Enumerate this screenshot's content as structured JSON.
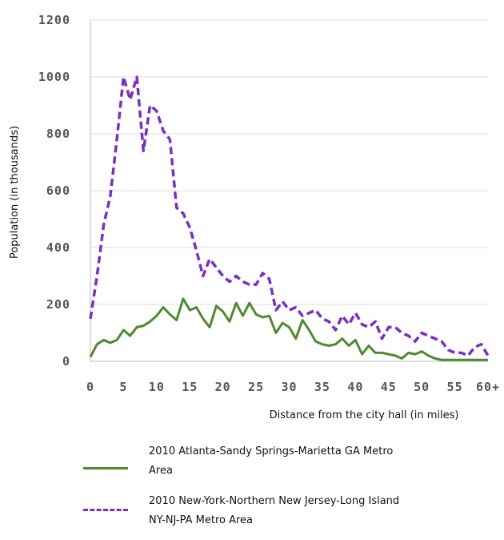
{
  "chart_data": {
    "type": "line",
    "xlabel": "Distance from the city hall (in miles)",
    "ylabel": "Population (in thousands)",
    "xlim": [
      0,
      60
    ],
    "ylim": [
      0,
      1200
    ],
    "x_ticks": [
      {
        "value": 0,
        "label": "0"
      },
      {
        "value": 5,
        "label": "5"
      },
      {
        "value": 10,
        "label": "10"
      },
      {
        "value": 15,
        "label": "15"
      },
      {
        "value": 20,
        "label": "20"
      },
      {
        "value": 25,
        "label": "25"
      },
      {
        "value": 30,
        "label": "30"
      },
      {
        "value": 35,
        "label": "35"
      },
      {
        "value": 40,
        "label": "40"
      },
      {
        "value": 45,
        "label": "45"
      },
      {
        "value": 50,
        "label": "50"
      },
      {
        "value": 55,
        "label": "55"
      },
      {
        "value": 60,
        "label": "60+"
      }
    ],
    "y_ticks": [
      0,
      200,
      400,
      600,
      800,
      1000,
      1200
    ],
    "grid": "horizontal",
    "legend_position": "bottom",
    "series": [
      {
        "name": "2010 Atlanta-Sandy Springs-Marietta GA Metro Area",
        "style": "solid",
        "color": "#4e8a30",
        "x": [
          0,
          1,
          2,
          3,
          4,
          5,
          6,
          7,
          8,
          9,
          10,
          11,
          12,
          13,
          14,
          15,
          16,
          17,
          18,
          19,
          20,
          21,
          22,
          23,
          24,
          25,
          26,
          27,
          28,
          29,
          30,
          31,
          32,
          33,
          34,
          35,
          36,
          37,
          38,
          39,
          40,
          41,
          42,
          43,
          44,
          45,
          46,
          47,
          48,
          49,
          50,
          51,
          52,
          53,
          54,
          55,
          56,
          57,
          58,
          59,
          60
        ],
        "values": [
          15,
          60,
          75,
          65,
          75,
          110,
          90,
          120,
          125,
          140,
          160,
          190,
          165,
          145,
          220,
          180,
          190,
          150,
          120,
          195,
          175,
          140,
          205,
          160,
          205,
          165,
          155,
          160,
          100,
          135,
          120,
          80,
          145,
          110,
          70,
          60,
          55,
          60,
          80,
          55,
          75,
          25,
          55,
          30,
          30,
          25,
          20,
          10,
          30,
          25,
          35,
          20,
          10,
          5,
          5,
          5,
          5,
          5,
          5,
          5,
          5
        ]
      },
      {
        "name": "2010 New-York-Northern New Jersey-Long Island NY-NJ-PA Metro Area",
        "style": "dashed",
        "color": "#7b2fbe",
        "x": [
          0,
          1,
          2,
          3,
          4,
          5,
          6,
          7,
          8,
          9,
          10,
          11,
          12,
          13,
          14,
          15,
          16,
          17,
          18,
          19,
          20,
          21,
          22,
          23,
          24,
          25,
          26,
          27,
          28,
          29,
          30,
          31,
          32,
          33,
          34,
          35,
          36,
          37,
          38,
          39,
          40,
          41,
          42,
          43,
          44,
          45,
          46,
          47,
          48,
          49,
          50,
          51,
          52,
          53,
          54,
          55,
          56,
          57,
          58,
          59,
          60
        ],
        "values": [
          150,
          300,
          480,
          580,
          780,
          1000,
          920,
          1000,
          740,
          900,
          880,
          810,
          780,
          540,
          520,
          470,
          390,
          300,
          360,
          330,
          300,
          280,
          300,
          280,
          270,
          270,
          310,
          290,
          180,
          210,
          180,
          190,
          160,
          170,
          180,
          150,
          140,
          110,
          160,
          130,
          170,
          130,
          120,
          140,
          80,
          120,
          120,
          100,
          90,
          70,
          100,
          90,
          80,
          70,
          40,
          30,
          30,
          20,
          50,
          60,
          20
        ]
      }
    ]
  }
}
